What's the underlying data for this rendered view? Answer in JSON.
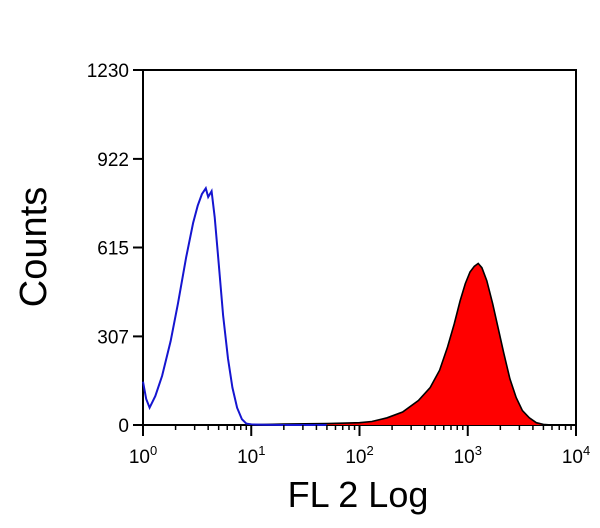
{
  "chart_data": {
    "type": "area",
    "xlabel": "FL 2 Log",
    "ylabel": "Counts",
    "x_scale": "log",
    "xlim": [
      1,
      10000
    ],
    "ylim": [
      0,
      1230
    ],
    "y_ticks": [
      0,
      307,
      615,
      922,
      1230
    ],
    "x_ticks": [
      {
        "value": 1,
        "base": "10",
        "exp": "0"
      },
      {
        "value": 10,
        "base": "10",
        "exp": "1"
      },
      {
        "value": 100,
        "base": "10",
        "exp": "2"
      },
      {
        "value": 1000,
        "base": "10",
        "exp": "3"
      },
      {
        "value": 10000,
        "base": "10",
        "exp": "4"
      }
    ],
    "series": [
      {
        "style": "outline",
        "color": "#1515d0",
        "points": [
          [
            1.0,
            150
          ],
          [
            1.07,
            90
          ],
          [
            1.15,
            60
          ],
          [
            1.3,
            100
          ],
          [
            1.5,
            170
          ],
          [
            1.8,
            290
          ],
          [
            2.1,
            420
          ],
          [
            2.5,
            580
          ],
          [
            2.9,
            700
          ],
          [
            3.2,
            760
          ],
          [
            3.5,
            800
          ],
          [
            3.8,
            820
          ],
          [
            4.0,
            790
          ],
          [
            4.3,
            810
          ],
          [
            4.6,
            720
          ],
          [
            5.0,
            560
          ],
          [
            5.5,
            380
          ],
          [
            6.1,
            230
          ],
          [
            6.7,
            130
          ],
          [
            7.4,
            60
          ],
          [
            8.2,
            20
          ],
          [
            9.0,
            5
          ],
          [
            10.0,
            2
          ],
          [
            13,
            1
          ],
          [
            20,
            0
          ],
          [
            50,
            0
          ]
        ]
      },
      {
        "style": "filled",
        "color": "#ff0000",
        "points": [
          [
            8,
            0
          ],
          [
            20,
            3
          ],
          [
            50,
            5
          ],
          [
            100,
            8
          ],
          [
            130,
            12
          ],
          [
            180,
            25
          ],
          [
            250,
            45
          ],
          [
            350,
            85
          ],
          [
            450,
            130
          ],
          [
            550,
            190
          ],
          [
            650,
            270
          ],
          [
            750,
            350
          ],
          [
            850,
            430
          ],
          [
            950,
            490
          ],
          [
            1050,
            530
          ],
          [
            1150,
            550
          ],
          [
            1250,
            560
          ],
          [
            1350,
            545
          ],
          [
            1500,
            500
          ],
          [
            1700,
            420
          ],
          [
            1900,
            340
          ],
          [
            2150,
            250
          ],
          [
            2450,
            160
          ],
          [
            2800,
            95
          ],
          [
            3200,
            50
          ],
          [
            3700,
            25
          ],
          [
            4300,
            8
          ],
          [
            5000,
            2
          ],
          [
            6000,
            0
          ]
        ]
      }
    ]
  }
}
